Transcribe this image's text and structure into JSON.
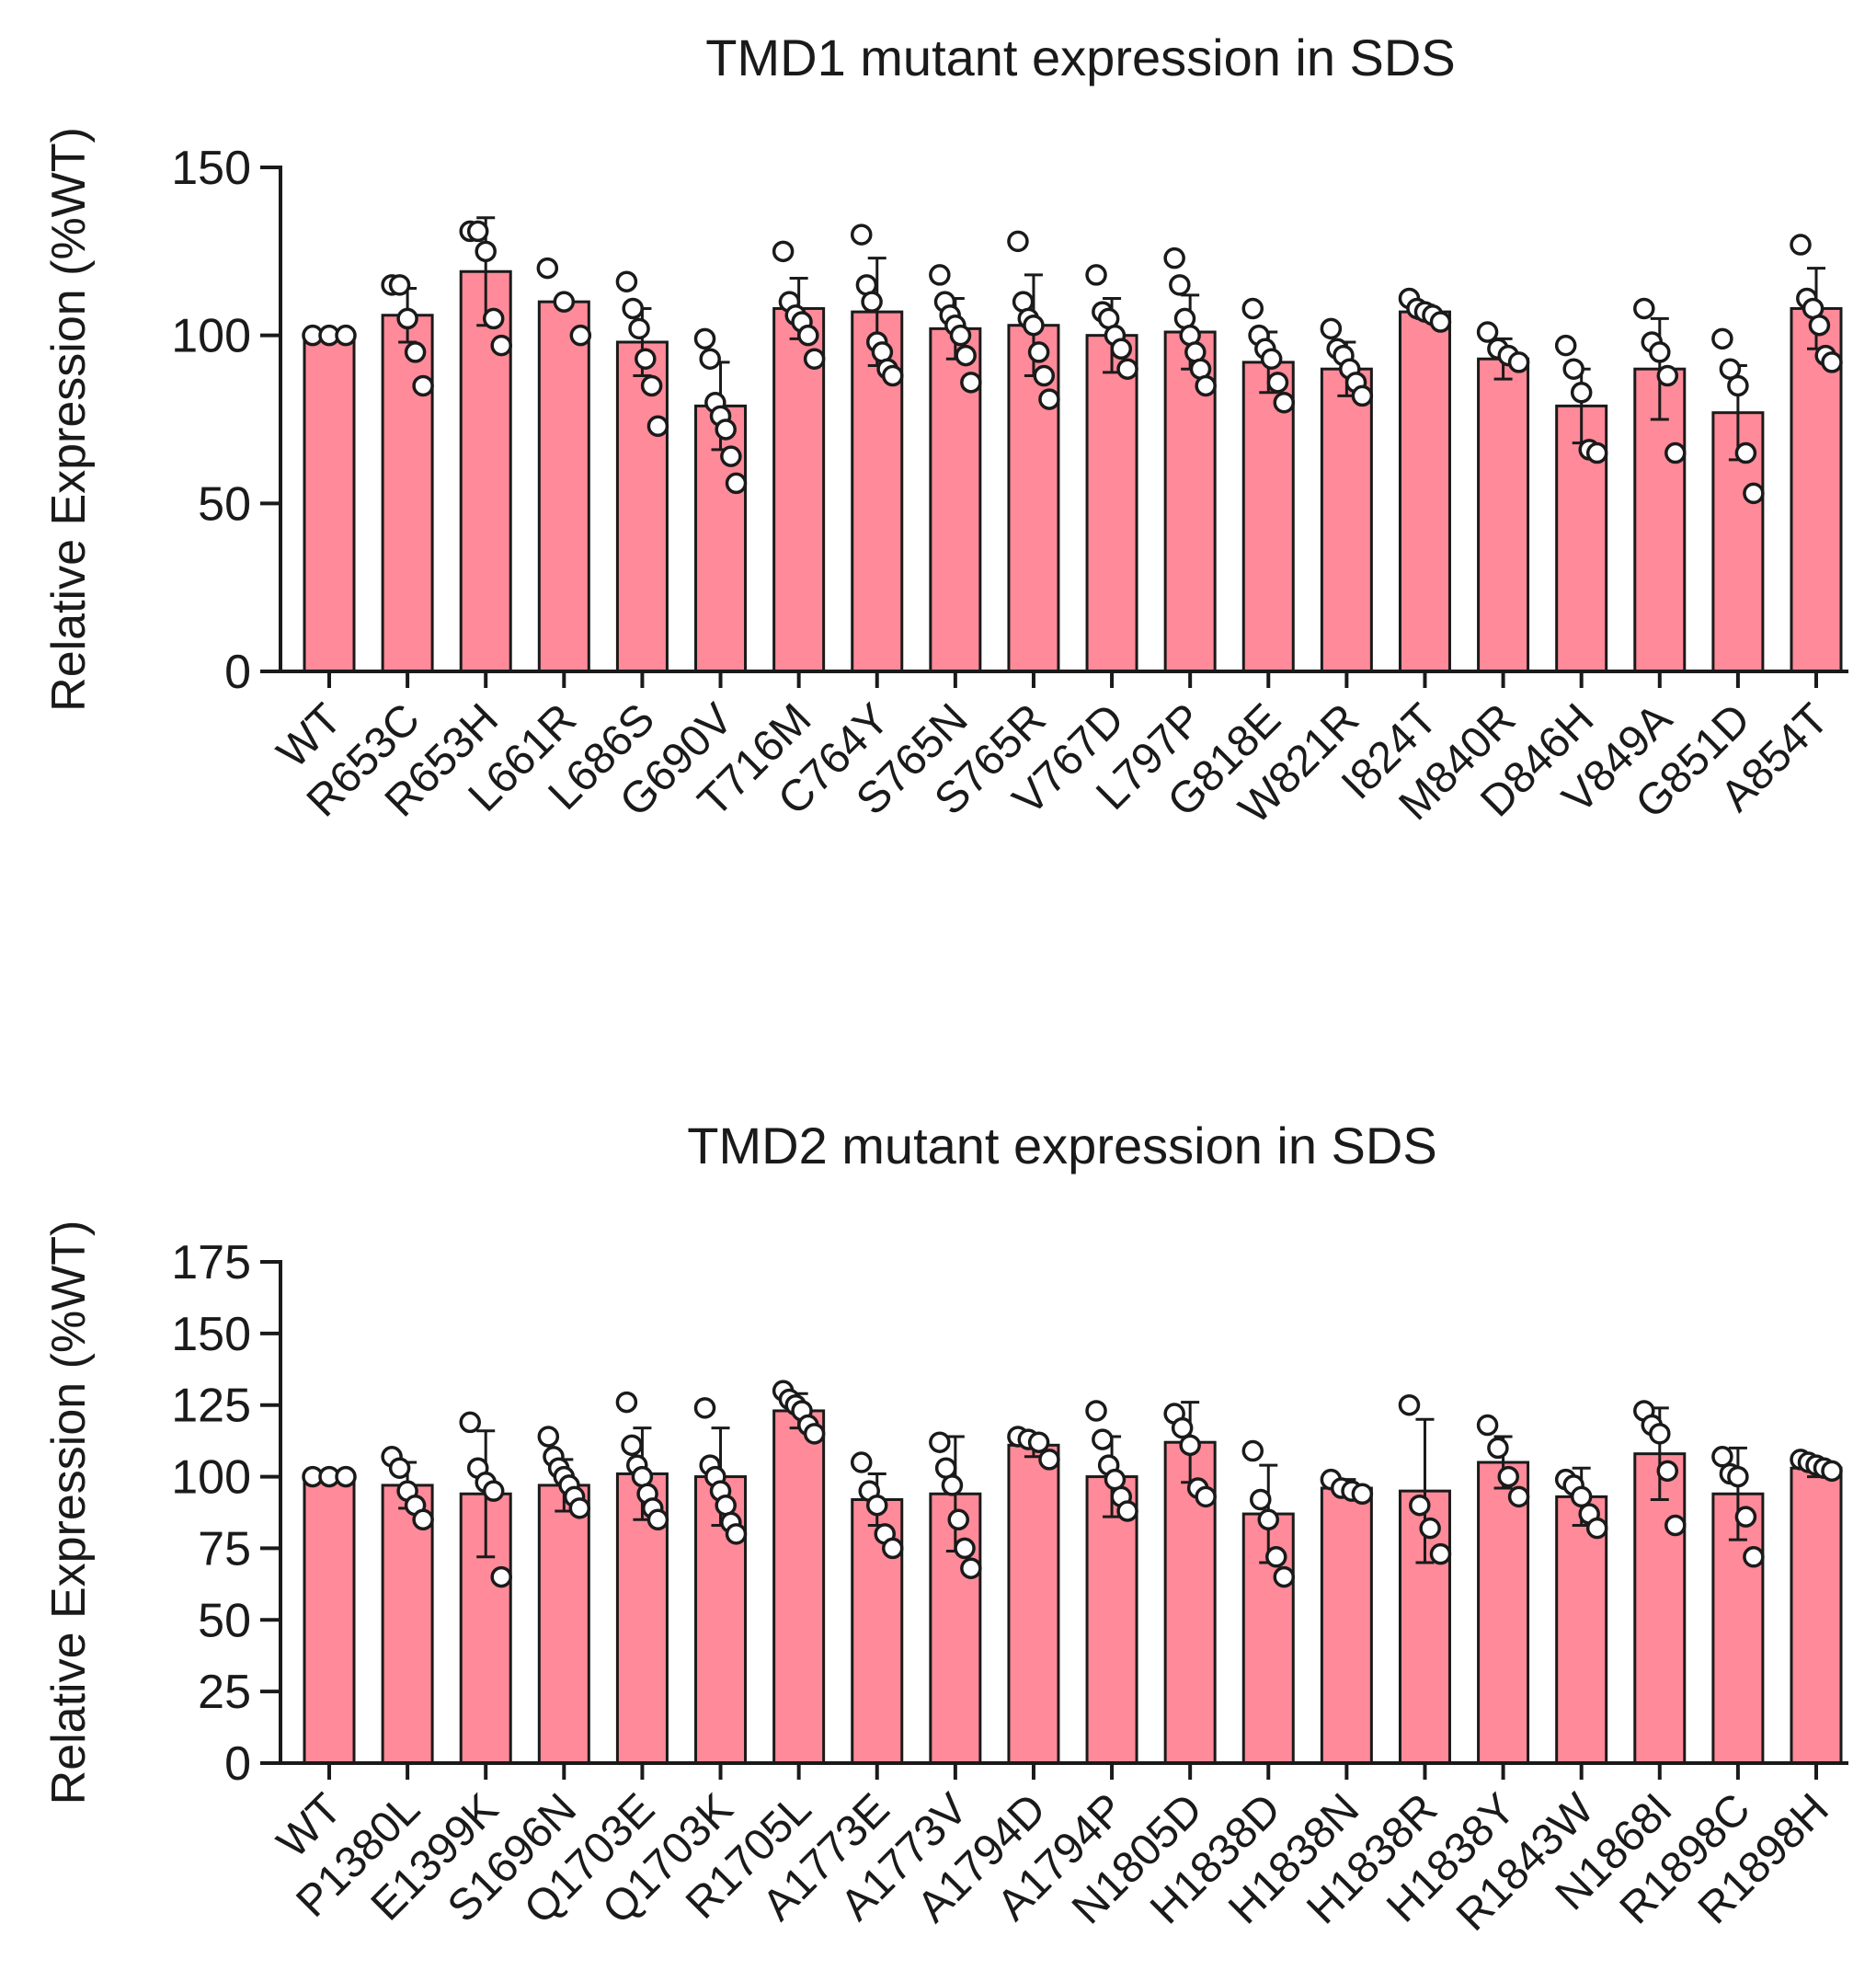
{
  "chart_data": [
    {
      "type": "bar",
      "title": "TMD1 mutant expression in SDS",
      "xlabel": "",
      "ylabel": "Relative Expression (%WT)",
      "ylim": [
        0,
        150
      ],
      "yticks": [
        0,
        50,
        100,
        150
      ],
      "categories": [
        "WT",
        "R653C",
        "R653H",
        "L661R",
        "L686S",
        "G690V",
        "T716M",
        "C764Y",
        "S765N",
        "S765R",
        "V767D",
        "L797P",
        "G818E",
        "W821R",
        "I824T",
        "M840R",
        "D846H",
        "V849A",
        "G851D",
        "A854T"
      ],
      "values": [
        100,
        106,
        119,
        110,
        98,
        79,
        108,
        107,
        102,
        103,
        100,
        101,
        92,
        90,
        107,
        93,
        79,
        90,
        77,
        108
      ],
      "error": [
        0,
        8,
        16,
        0,
        10,
        13,
        9,
        16,
        9,
        15,
        11,
        11,
        9,
        8,
        2,
        6,
        11,
        15,
        14,
        12
      ],
      "points": [
        [
          100,
          100,
          100
        ],
        [
          115,
          115,
          105,
          95,
          85
        ],
        [
          131,
          131,
          125,
          105,
          97
        ],
        [
          120,
          110,
          100
        ],
        [
          116,
          108,
          102,
          93,
          85,
          73
        ],
        [
          99,
          93,
          80,
          76,
          72,
          64,
          56
        ],
        [
          125,
          110,
          106,
          104,
          100,
          93
        ],
        [
          130,
          115,
          110,
          98,
          95,
          90,
          88
        ],
        [
          118,
          110,
          106,
          103,
          100,
          94,
          86
        ],
        [
          128,
          110,
          105,
          103,
          95,
          88,
          81
        ],
        [
          118,
          107,
          105,
          100,
          96,
          90
        ],
        [
          123,
          115,
          105,
          100,
          95,
          90,
          85
        ],
        [
          108,
          100,
          96,
          93,
          86,
          80
        ],
        [
          102,
          96,
          94,
          90,
          86,
          82
        ],
        [
          111,
          108,
          107,
          106,
          104
        ],
        [
          101,
          96,
          94,
          92
        ],
        [
          97,
          90,
          83,
          66,
          65
        ],
        [
          108,
          98,
          95,
          88,
          65
        ],
        [
          99,
          90,
          85,
          65,
          53
        ],
        [
          127,
          111,
          108,
          103,
          94,
          92
        ]
      ]
    },
    {
      "type": "bar",
      "title": "TMD2 mutant expression in SDS",
      "xlabel": "",
      "ylabel": "Relative Expression (%WT)",
      "ylim": [
        0,
        175
      ],
      "yticks": [
        0,
        25,
        50,
        75,
        100,
        125,
        150,
        175
      ],
      "categories": [
        "WT",
        "P1380L",
        "E1399K",
        "S1696N",
        "Q1703E",
        "Q1703K",
        "R1705L",
        "A1773E",
        "A1773V",
        "A1794D",
        "A1794P",
        "N1805D",
        "H1838D",
        "H1838N",
        "H1838R",
        "H1838Y",
        "R1843W",
        "N1868I",
        "R1898C",
        "R1898H"
      ],
      "values": [
        100,
        97,
        94,
        97,
        101,
        100,
        123,
        92,
        94,
        111,
        100,
        112,
        87,
        96,
        95,
        105,
        93,
        108,
        94,
        103
      ],
      "error": [
        0,
        8,
        22,
        9,
        16,
        17,
        6,
        9,
        20,
        4,
        14,
        14,
        17,
        3,
        25,
        9,
        10,
        16,
        16,
        3
      ],
      "points": [
        [
          100,
          100,
          100
        ],
        [
          107,
          103,
          95,
          90,
          85
        ],
        [
          119,
          103,
          98,
          95,
          65
        ],
        [
          114,
          107,
          103,
          100,
          97,
          93,
          89
        ],
        [
          126,
          111,
          104,
          100,
          94,
          89,
          85
        ],
        [
          124,
          104,
          100,
          95,
          90,
          84,
          80
        ],
        [
          130,
          127,
          125,
          123,
          118,
          115
        ],
        [
          105,
          95,
          90,
          80,
          75
        ],
        [
          112,
          103,
          97,
          85,
          75,
          68
        ],
        [
          114,
          113,
          112,
          106
        ],
        [
          123,
          113,
          104,
          99,
          93,
          88
        ],
        [
          122,
          117,
          111,
          96,
          93
        ],
        [
          109,
          92,
          85,
          72,
          65
        ],
        [
          99,
          96,
          95,
          94
        ],
        [
          125,
          90,
          82,
          73
        ],
        [
          118,
          110,
          100,
          93
        ],
        [
          99,
          97,
          93,
          87,
          82
        ],
        [
          123,
          118,
          115,
          102,
          83
        ],
        [
          107,
          101,
          100,
          86,
          72
        ],
        [
          106,
          105,
          104,
          103,
          102
        ]
      ]
    }
  ]
}
